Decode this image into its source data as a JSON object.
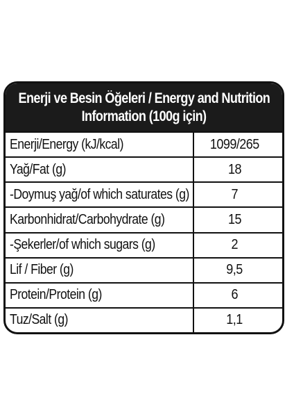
{
  "header": {
    "line1": "Enerji ve Besin Öğeleri / Energy and Nutrition",
    "line2": "Information (100g için)"
  },
  "rows": [
    {
      "label": "Enerji/Energy (kJ/kcal)",
      "value": "1099/265"
    },
    {
      "label": "Yağ/Fat (g)",
      "value": "18"
    },
    {
      "label": "-Doymuş yağ/of which saturates (g)",
      "value": "7"
    },
    {
      "label": "Karbonhidrat/Carbohydrate (g)",
      "value": "15"
    },
    {
      "label": "-Şekerler/of which sugars (g)",
      "value": "2"
    },
    {
      "label": "Lif / Fiber (g)",
      "value": "9,5"
    },
    {
      "label": "Protein/Protein (g)",
      "value": "6"
    },
    {
      "label": "Tuz/Salt (g)",
      "value": "1,1"
    }
  ],
  "colors": {
    "header_background": "#1b1b1b",
    "header_text": "#ffffff",
    "border": "#111111",
    "text": "#111111"
  }
}
